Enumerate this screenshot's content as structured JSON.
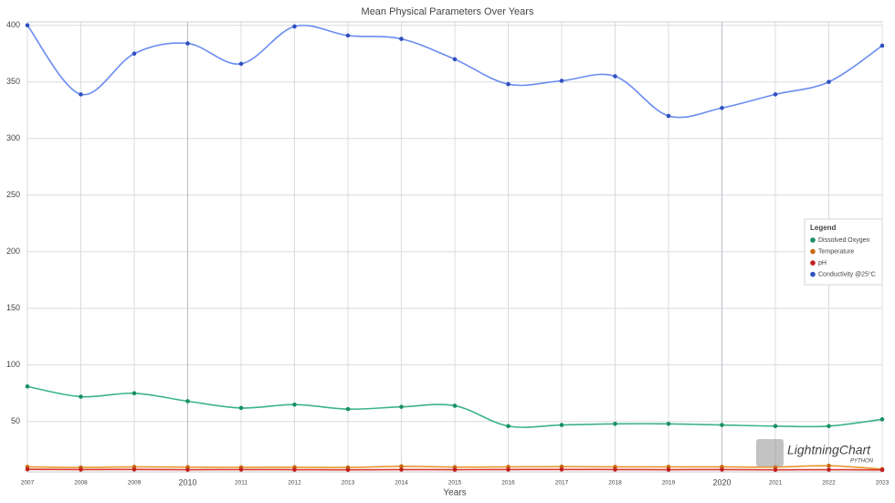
{
  "chart_data": {
    "type": "line",
    "title": "Mean Physical Parameters Over Years",
    "x_label": "Years",
    "x": [
      2007,
      2008,
      2009,
      2010,
      2011,
      2012,
      2013,
      2014,
      2015,
      2016,
      2017,
      2018,
      2019,
      2020,
      2021,
      2022,
      2023
    ],
    "xlim": [
      2007,
      2023
    ],
    "xticks": [
      2007,
      2008,
      2009,
      2010,
      2011,
      2012,
      2013,
      2014,
      2015,
      2016,
      2017,
      2018,
      2019,
      2020,
      2021,
      2022,
      2023
    ],
    "ylim": [
      5.5,
      403
    ],
    "yticks": [
      50,
      100,
      150,
      200,
      250,
      300,
      350,
      400
    ],
    "grid": true,
    "legend_title": "Legend",
    "legend_position": "right",
    "series": [
      {
        "name": "Dissolved Oxygen",
        "color": "#3cb38a",
        "marker_color": "#1a9060",
        "values": [
          81,
          72,
          75,
          68,
          62,
          65,
          61,
          63,
          64,
          46,
          47,
          48,
          48,
          47,
          46,
          46,
          52
        ]
      },
      {
        "name": "Temperature",
        "color": "#e8952e",
        "marker_color": "#c96a10",
        "values": [
          10,
          9.5,
          10,
          9.8,
          9.6,
          9.7,
          9.5,
          10.5,
          9.8,
          10,
          10.2,
          10,
          10,
          10,
          9.8,
          11,
          8
        ]
      },
      {
        "name": "pH",
        "color": "#d9342b",
        "marker_color": "#c02020",
        "values": [
          7.8,
          7.6,
          7.7,
          7.5,
          7.6,
          7.5,
          7.4,
          7.6,
          7.5,
          7.6,
          7.7,
          7.6,
          7.5,
          7.6,
          7.4,
          7.5,
          7.3
        ]
      },
      {
        "name": "Conductivity @25°C",
        "color": "#6a8cf0",
        "marker_color": "#3050c0",
        "values": [
          400,
          339,
          375,
          384,
          366,
          399,
          391,
          388,
          370,
          348,
          351,
          355,
          320,
          327,
          339,
          350,
          382
        ]
      }
    ],
    "watermark": "LightningChart",
    "watermark_sub": "PYTHON"
  }
}
